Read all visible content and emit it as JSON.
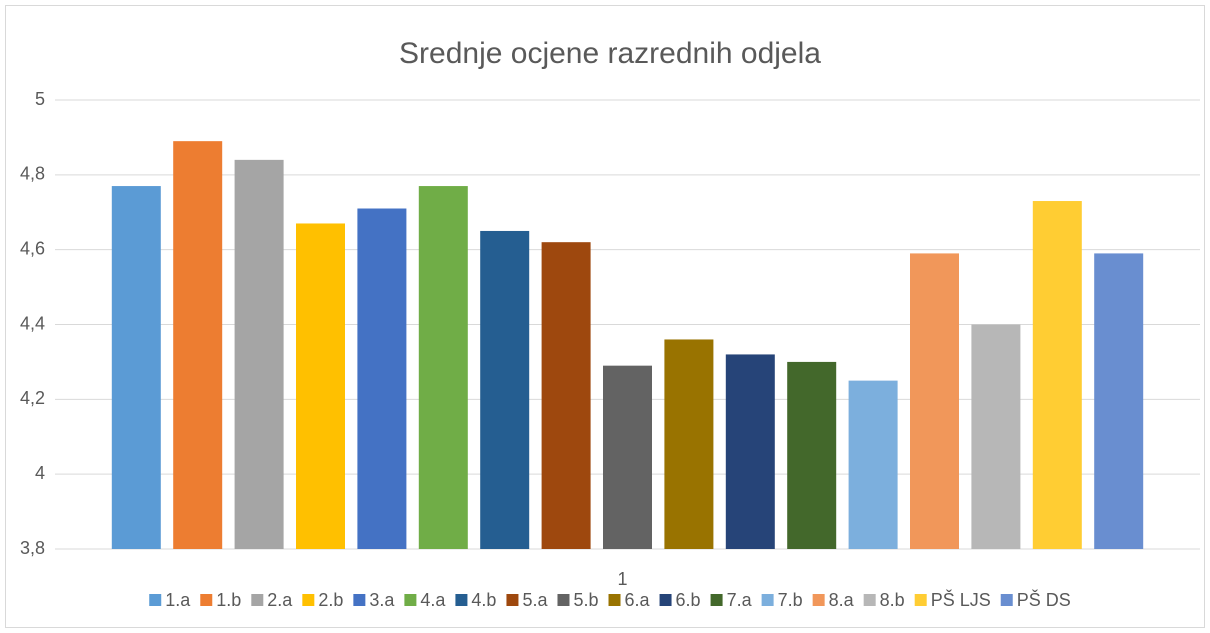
{
  "chart_data": {
    "type": "bar",
    "title": "Srednje ocjene razrednih odjela",
    "categories": [
      "1"
    ],
    "series": [
      {
        "name": "1.a",
        "color": "#5b9bd5",
        "values": [
          4.77
        ]
      },
      {
        "name": "1.b",
        "color": "#ed7d31",
        "values": [
          4.89
        ]
      },
      {
        "name": "2.a",
        "color": "#a5a5a5",
        "values": [
          4.84
        ]
      },
      {
        "name": "2.b",
        "color": "#ffc000",
        "values": [
          4.67
        ]
      },
      {
        "name": "3.a",
        "color": "#4472c4",
        "values": [
          4.71
        ]
      },
      {
        "name": "4.a",
        "color": "#70ad47",
        "values": [
          4.77
        ]
      },
      {
        "name": "4.b",
        "color": "#255e91",
        "values": [
          4.65
        ]
      },
      {
        "name": "5.a",
        "color": "#9e480e",
        "values": [
          4.62
        ]
      },
      {
        "name": "5.b",
        "color": "#636363",
        "values": [
          4.29
        ]
      },
      {
        "name": "6.a",
        "color": "#997300",
        "values": [
          4.36
        ]
      },
      {
        "name": "6.b",
        "color": "#264478",
        "values": [
          4.32
        ]
      },
      {
        "name": "7.a",
        "color": "#43682b",
        "values": [
          4.3
        ]
      },
      {
        "name": "7.b",
        "color": "#7cafdd",
        "values": [
          4.25
        ]
      },
      {
        "name": "8.a",
        "color": "#f1975a",
        "values": [
          4.59
        ]
      },
      {
        "name": "8.b",
        "color": "#b7b7b7",
        "values": [
          4.4
        ]
      },
      {
        "name": "PŠ LJS",
        "color": "#ffcd33",
        "values": [
          4.73
        ]
      },
      {
        "name": "PŠ DS",
        "color": "#698ed0",
        "values": [
          4.59
        ]
      }
    ],
    "ylim": [
      3.8,
      5
    ],
    "yticks": [
      {
        "value": 3.8,
        "label": "3,8"
      },
      4,
      {
        "value": 4.2,
        "label": "4,2"
      },
      {
        "value": 4.4,
        "label": "4,4"
      },
      {
        "value": 4.6,
        "label": "4,6"
      },
      {
        "value": 4.8,
        "label": "4,8"
      },
      5
    ],
    "grid": true,
    "legend": "bottom"
  }
}
